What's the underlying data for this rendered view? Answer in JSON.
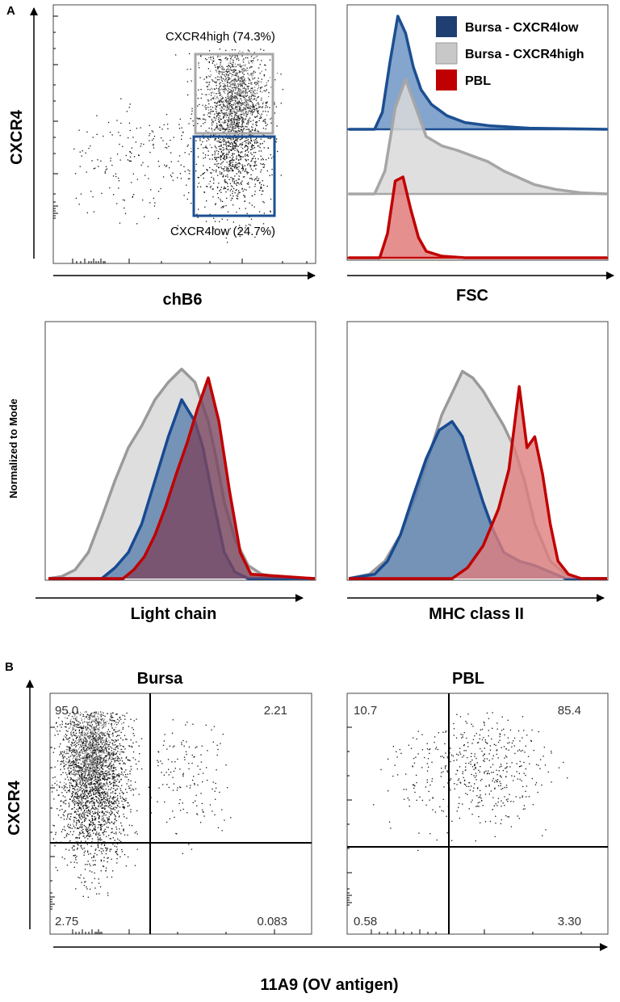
{
  "panel_labels": {
    "a": "A",
    "b": "B"
  },
  "chart_data": [
    {
      "id": "a1",
      "type": "scatter",
      "xlabel": "chB6",
      "ylabel": "CXCR4",
      "gates": [
        {
          "name": "CXCR4high",
          "label": "CXCR4high (74.3%)",
          "percent": 74.3,
          "color": "#a8a8a8"
        },
        {
          "name": "CXCR4low",
          "label": "CXCR4low (24.7%)",
          "percent": 24.7,
          "color": "#1c4f91"
        }
      ]
    },
    {
      "id": "a2",
      "type": "area",
      "xlabel": "FSC",
      "legend": {
        "position": "top-right",
        "entries": [
          {
            "label": "Bursa - CXCR4low",
            "color": "#1f3f73"
          },
          {
            "label": "Bursa - CXCR4high",
            "color": "#c8c8c8"
          },
          {
            "label": "PBL",
            "color": "#c00000"
          }
        ]
      },
      "series": [
        {
          "name": "Bursa - CXCR4low",
          "color": "#1c4f91",
          "fill": "#6f95c4",
          "x": [
            0,
            0.1,
            0.13,
            0.16,
            0.19,
            0.22,
            0.25,
            0.28,
            0.32,
            0.38,
            0.45,
            0.55,
            0.7,
            1
          ],
          "y": [
            0,
            0,
            0.15,
            0.6,
            1.0,
            0.85,
            0.55,
            0.35,
            0.22,
            0.12,
            0.06,
            0.03,
            0.01,
            0
          ]
        },
        {
          "name": "Bursa - CXCR4high",
          "color": "#a6a6a6",
          "fill": "#d9d9d9",
          "x": [
            0,
            0.1,
            0.14,
            0.18,
            0.22,
            0.26,
            0.3,
            0.36,
            0.42,
            0.48,
            0.54,
            0.6,
            0.66,
            0.72,
            0.8,
            0.9,
            1
          ],
          "y": [
            0,
            0,
            0.2,
            0.75,
            1.0,
            0.75,
            0.5,
            0.42,
            0.38,
            0.33,
            0.28,
            0.2,
            0.14,
            0.08,
            0.04,
            0.01,
            0
          ]
        },
        {
          "name": "PBL",
          "color": "#c00000",
          "fill": "#e07b7b",
          "x": [
            0,
            0.12,
            0.15,
            0.18,
            0.21,
            0.24,
            0.27,
            0.3,
            0.36,
            0.45,
            1
          ],
          "y": [
            0,
            0,
            0.3,
            0.95,
            1.0,
            0.6,
            0.25,
            0.08,
            0.02,
            0,
            0
          ]
        }
      ]
    },
    {
      "id": "a3",
      "type": "area",
      "xlabel": "Light chain",
      "ylabel": "Normalized to Mode",
      "series": [
        {
          "name": "Bursa - CXCR4high",
          "color": "#9a9a9a",
          "fill": "#d6d6d6",
          "x": [
            0,
            0.05,
            0.1,
            0.15,
            0.2,
            0.25,
            0.3,
            0.35,
            0.4,
            0.45,
            0.5,
            0.55,
            0.6,
            0.63,
            0.66,
            0.7,
            0.75,
            0.8,
            0.85,
            0.9,
            1
          ],
          "y": [
            0,
            0.01,
            0.04,
            0.12,
            0.28,
            0.45,
            0.6,
            0.7,
            0.82,
            0.9,
            0.96,
            0.9,
            0.72,
            0.55,
            0.35,
            0.18,
            0.06,
            0.02,
            0.01,
            0,
            0
          ]
        },
        {
          "name": "Bursa - CXCR4low",
          "color": "#174a92",
          "fill": "#5a7fad",
          "x": [
            0,
            0.2,
            0.25,
            0.3,
            0.35,
            0.4,
            0.45,
            0.5,
            0.55,
            0.58,
            0.62,
            0.66,
            0.7,
            0.75,
            1
          ],
          "y": [
            0,
            0,
            0.05,
            0.12,
            0.25,
            0.45,
            0.65,
            0.82,
            0.72,
            0.6,
            0.35,
            0.12,
            0.03,
            0,
            0
          ]
        },
        {
          "name": "PBL",
          "color": "#c00000",
          "fill": "#7a4660",
          "x": [
            0,
            0.28,
            0.32,
            0.36,
            0.4,
            0.44,
            0.48,
            0.52,
            0.56,
            0.6,
            0.64,
            0.68,
            0.72,
            0.76,
            1
          ],
          "y": [
            0,
            0,
            0.04,
            0.1,
            0.2,
            0.33,
            0.48,
            0.62,
            0.78,
            0.92,
            0.72,
            0.4,
            0.12,
            0.02,
            0
          ]
        }
      ]
    },
    {
      "id": "a4",
      "type": "area",
      "xlabel": "MHC class II",
      "series": [
        {
          "name": "Bursa - CXCR4high",
          "color": "#9a9a9a",
          "fill": "#d6d6d6",
          "x": [
            0,
            0.08,
            0.14,
            0.2,
            0.26,
            0.32,
            0.36,
            0.4,
            0.44,
            0.48,
            0.52,
            0.56,
            0.6,
            0.64,
            0.68,
            0.72,
            0.78,
            0.84,
            0.9,
            1
          ],
          "y": [
            0,
            0.02,
            0.08,
            0.2,
            0.38,
            0.6,
            0.75,
            0.85,
            0.95,
            0.92,
            0.86,
            0.78,
            0.7,
            0.6,
            0.45,
            0.25,
            0.08,
            0.02,
            0,
            0
          ]
        },
        {
          "name": "Bursa - CXCR4low",
          "color": "#174a92",
          "fill": "#5a7fad",
          "x": [
            0,
            0.1,
            0.15,
            0.2,
            0.25,
            0.3,
            0.35,
            0.4,
            0.44,
            0.48,
            0.52,
            0.56,
            0.6,
            0.66,
            0.72,
            0.78,
            0.84,
            1
          ],
          "y": [
            0,
            0.02,
            0.08,
            0.2,
            0.38,
            0.55,
            0.68,
            0.72,
            0.65,
            0.5,
            0.35,
            0.22,
            0.12,
            0.08,
            0.06,
            0.03,
            0,
            0
          ]
        },
        {
          "name": "PBL",
          "color": "#c00000",
          "fill": "#df7e7e",
          "x": [
            0,
            0.4,
            0.46,
            0.52,
            0.58,
            0.62,
            0.66,
            0.69,
            0.72,
            0.75,
            0.78,
            0.81,
            0.85,
            0.9,
            1
          ],
          "y": [
            0,
            0,
            0.05,
            0.15,
            0.32,
            0.5,
            0.88,
            0.6,
            0.65,
            0.48,
            0.25,
            0.08,
            0.02,
            0,
            0
          ]
        }
      ]
    },
    {
      "id": "b1",
      "type": "scatter",
      "title": "Bursa",
      "ylabel": "CXCR4",
      "quadrants": {
        "top_left": "95.0",
        "top_right": "2.21",
        "bottom_left": "2.75",
        "bottom_right": "0.083"
      }
    },
    {
      "id": "b2",
      "type": "scatter",
      "title": "PBL",
      "xlabel": "11A9 (OV antigen)",
      "quadrants": {
        "top_left": "10.7",
        "top_right": "85.4",
        "bottom_left": "0.58",
        "bottom_right": "3.30"
      }
    }
  ]
}
